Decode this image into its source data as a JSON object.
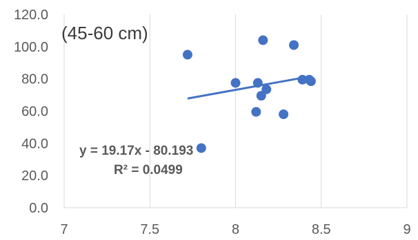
{
  "chart_data": {
    "type": "scatter",
    "title": "",
    "xlabel": "",
    "ylabel": "",
    "annotation": "(45-60 cm)",
    "xlim": [
      7,
      9
    ],
    "ylim": [
      0,
      120
    ],
    "x_ticks": [
      7,
      7.5,
      8,
      8.5,
      9
    ],
    "x_tick_labels": [
      "7",
      "7.5",
      "8",
      "8.5",
      "9"
    ],
    "y_ticks": [
      0,
      20,
      40,
      60,
      80,
      100,
      120
    ],
    "y_tick_labels": [
      "0.0",
      "20.0",
      "40.0",
      "60.0",
      "80.0",
      "100.0",
      "120.0"
    ],
    "grid": "vertical",
    "marker_color": "#4472C4",
    "series": [
      {
        "points": [
          {
            "x": 7.72,
            "y": 95.0
          },
          {
            "x": 7.8,
            "y": 37.0
          },
          {
            "x": 8.0,
            "y": 77.5
          },
          {
            "x": 8.12,
            "y": 59.5
          },
          {
            "x": 8.13,
            "y": 77.5
          },
          {
            "x": 8.15,
            "y": 69.5
          },
          {
            "x": 8.16,
            "y": 104.0
          },
          {
            "x": 8.18,
            "y": 73.5
          },
          {
            "x": 8.28,
            "y": 58.0
          },
          {
            "x": 8.34,
            "y": 101.0
          },
          {
            "x": 8.39,
            "y": 79.5
          },
          {
            "x": 8.43,
            "y": 79.5
          },
          {
            "x": 8.44,
            "y": 78.5
          }
        ]
      }
    ],
    "trendline": {
      "type": "linear",
      "slope": 19.17,
      "intercept": -80.193,
      "x_range": [
        7.72,
        8.44
      ],
      "equation_label": "y = 19.17x - 80.193",
      "r2_label": "R² = 0.0499"
    }
  }
}
